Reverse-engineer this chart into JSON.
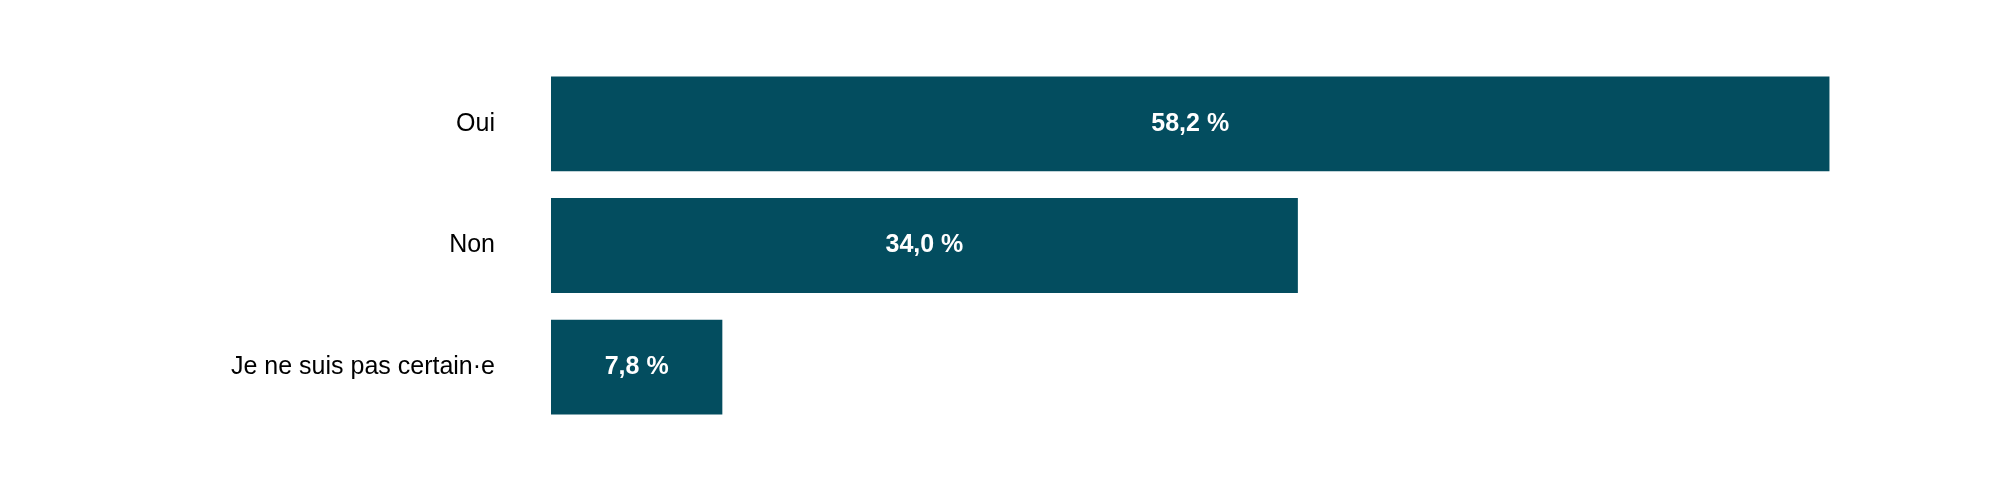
{
  "chart_data": {
    "type": "bar",
    "orientation": "horizontal",
    "categories": [
      "Oui",
      "Non",
      "Je ne suis pas certain·e"
    ],
    "values": [
      58.2,
      34.0,
      7.8
    ],
    "value_labels": [
      "58,2 %",
      "34,0 %",
      "7,8 %"
    ],
    "color": "#034d5f",
    "legend": false
  }
}
